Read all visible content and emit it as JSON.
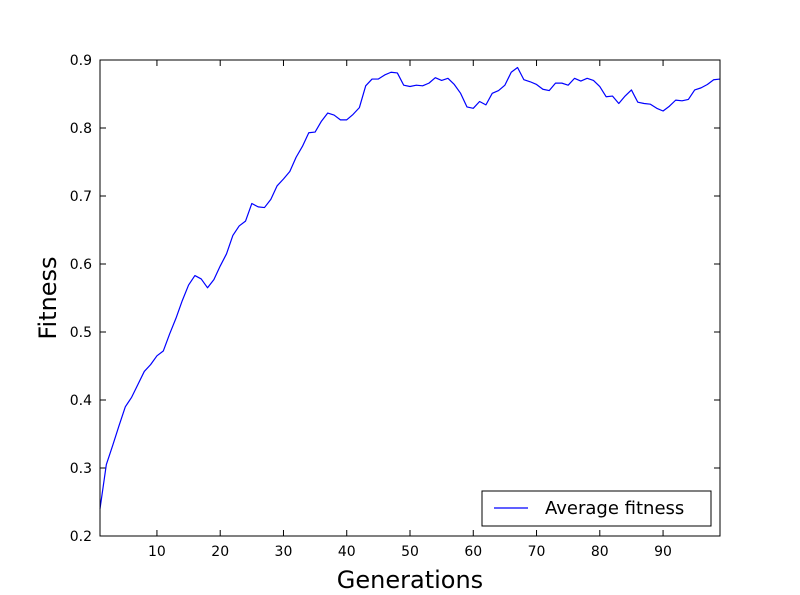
{
  "chart_data": {
    "type": "line",
    "title": "",
    "xlabel": "Generations",
    "ylabel": "Fitness",
    "xlim": [
      1,
      99
    ],
    "ylim": [
      0.2,
      0.9
    ],
    "xticks": [
      10,
      20,
      30,
      40,
      50,
      60,
      70,
      80,
      90
    ],
    "xtick_labels": [
      "10",
      "20",
      "30",
      "40",
      "50",
      "60",
      "70",
      "80",
      "90"
    ],
    "yticks": [
      0.2,
      0.3,
      0.4,
      0.5,
      0.6,
      0.7,
      0.8,
      0.9
    ],
    "ytick_labels": [
      "0.2",
      "0.3",
      "0.4",
      "0.5",
      "0.6",
      "0.7",
      "0.8",
      "0.9"
    ],
    "legend_position": "bottom-right",
    "series": [
      {
        "name": "Average fitness",
        "color": "#0000ff",
        "x": [
          1,
          2,
          3,
          4,
          5,
          6,
          7,
          8,
          9,
          10,
          11,
          12,
          13,
          14,
          15,
          16,
          17,
          18,
          19,
          20,
          21,
          22,
          23,
          24,
          25,
          26,
          27,
          28,
          29,
          30,
          31,
          32,
          33,
          34,
          35,
          36,
          37,
          38,
          39,
          40,
          41,
          42,
          43,
          44,
          45,
          46,
          47,
          48,
          49,
          50,
          51,
          52,
          53,
          54,
          55,
          56,
          57,
          58,
          59,
          60,
          61,
          62,
          63,
          64,
          65,
          66,
          67,
          68,
          69,
          70,
          71,
          72,
          73,
          74,
          75,
          76,
          77,
          78,
          79,
          80,
          81,
          82,
          83,
          84,
          85,
          86,
          87,
          88,
          89,
          90,
          91,
          92,
          93,
          94,
          95,
          96,
          97,
          98,
          99
        ],
        "values": [
          0.24,
          0.305,
          0.333,
          0.362,
          0.39,
          0.404,
          0.423,
          0.442,
          0.452,
          0.465,
          0.472,
          0.497,
          0.52,
          0.546,
          0.569,
          0.583,
          0.578,
          0.565,
          0.577,
          0.597,
          0.615,
          0.642,
          0.656,
          0.663,
          0.689,
          0.684,
          0.683,
          0.695,
          0.715,
          0.725,
          0.736,
          0.757,
          0.773,
          0.793,
          0.794,
          0.81,
          0.822,
          0.819,
          0.812,
          0.812,
          0.82,
          0.83,
          0.862,
          0.872,
          0.872,
          0.878,
          0.882,
          0.881,
          0.863,
          0.861,
          0.863,
          0.862,
          0.866,
          0.874,
          0.87,
          0.873,
          0.864,
          0.851,
          0.831,
          0.829,
          0.839,
          0.834,
          0.851,
          0.855,
          0.863,
          0.882,
          0.889,
          0.871,
          0.868,
          0.864,
          0.857,
          0.855,
          0.866,
          0.866,
          0.863,
          0.873,
          0.869,
          0.873,
          0.87,
          0.861,
          0.846,
          0.847,
          0.836,
          0.847,
          0.856,
          0.838,
          0.836,
          0.835,
          0.829,
          0.825,
          0.832,
          0.841,
          0.84,
          0.842,
          0.856,
          0.859,
          0.864,
          0.871,
          0.872
        ]
      }
    ]
  }
}
